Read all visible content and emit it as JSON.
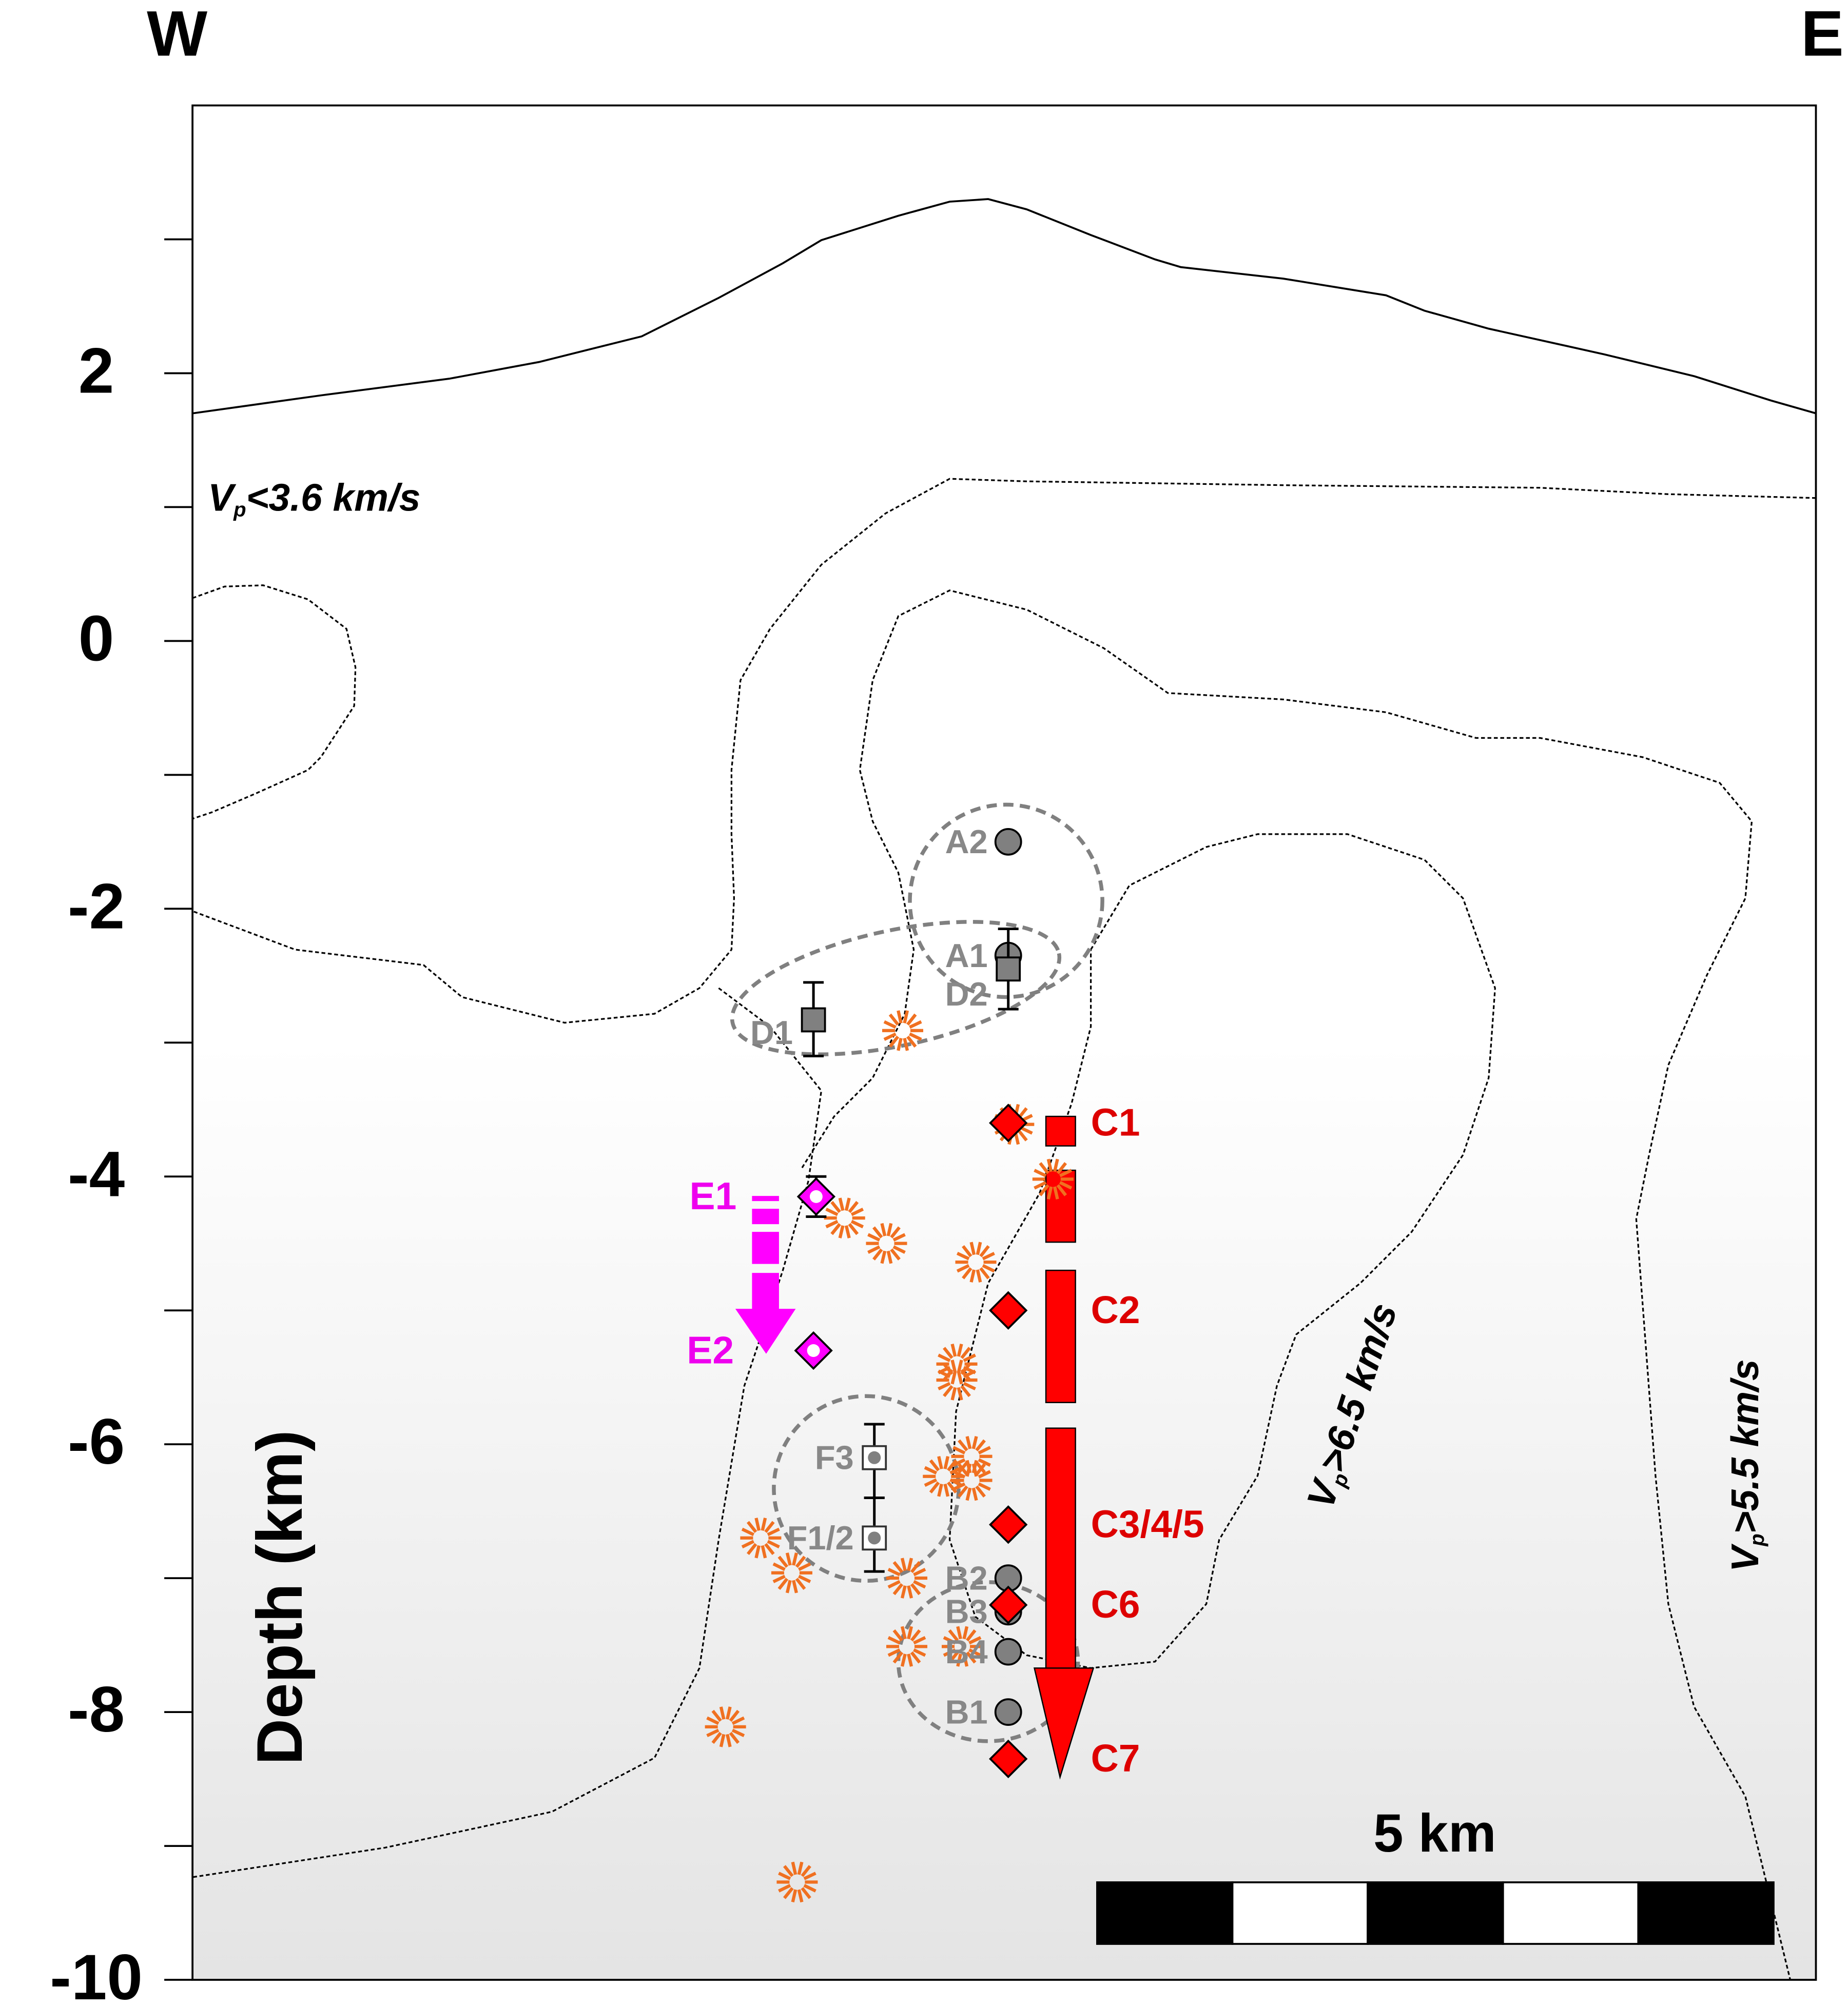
{
  "chart_data": {
    "type": "cross-section",
    "left_label": "W",
    "right_label": "E",
    "y_label": "Depth (km)",
    "xlim": [
      0,
      12
    ],
    "ylim": [
      -10,
      4
    ],
    "yticks": [
      -10,
      -8,
      -6,
      -4,
      -2,
      0,
      2
    ],
    "minor_yticks": [
      -9,
      -7,
      -5,
      -3,
      -1,
      1,
      3
    ],
    "annotations": [
      {
        "symbol": "V",
        "subscript": "p",
        "text": "<3.6 km/s"
      },
      {
        "symbol": "V",
        "subscript": "p",
        "text": ">6.5 km/s"
      },
      {
        "symbol": "V",
        "subscript": "p",
        "text": ">5.5 km/s"
      }
    ],
    "scale_bar": {
      "label": "5 km",
      "length": 5
    },
    "points": [
      {
        "label": "A2",
        "x": 6.03,
        "depth": -1.5,
        "marker": "circle",
        "color": "#808080"
      },
      {
        "label": "A1",
        "x": 6.03,
        "depth": -2.35,
        "marker": "circle",
        "color": "#808080"
      },
      {
        "label": "D2",
        "x": 6.03,
        "depth": -2.45,
        "marker": "square",
        "color": "#808080",
        "depth_range": [
          -2.15,
          -2.75
        ]
      },
      {
        "label": "D1",
        "x": 4.59,
        "depth": -2.83,
        "marker": "square",
        "color": "#808080",
        "depth_range": [
          -2.55,
          -3.1
        ]
      },
      {
        "label": "E1",
        "x": 4.61,
        "depth": -4.15,
        "marker": "diamond",
        "color": "#ff00ff",
        "depth_range": [
          -4.0,
          -4.3
        ]
      },
      {
        "label": "E2",
        "x": 4.59,
        "depth": -5.3,
        "marker": "diamond",
        "color": "#ff00ff"
      },
      {
        "label": "F3",
        "x": 5.04,
        "depth": -6.1,
        "marker": "square",
        "color": "#808080",
        "depth_range": [
          -5.85,
          -6.4
        ]
      },
      {
        "label": "F1/2",
        "x": 5.04,
        "depth": -6.7,
        "marker": "square",
        "color": "#808080",
        "depth_range": [
          -6.4,
          -6.95
        ]
      },
      {
        "label": "B2",
        "x": 6.03,
        "depth": -7.0,
        "marker": "circle",
        "color": "#808080"
      },
      {
        "label": "B3",
        "x": 6.03,
        "depth": -7.25,
        "marker": "circle",
        "color": "#808080"
      },
      {
        "label": "B4",
        "x": 6.03,
        "depth": -7.55,
        "marker": "circle",
        "color": "#808080"
      },
      {
        "label": "B1",
        "x": 6.03,
        "depth": -8.0,
        "marker": "circle",
        "color": "#808080"
      },
      {
        "label": "C1",
        "x": 6.03,
        "depth": -3.6,
        "marker": "diamond",
        "color": "#ff0000"
      },
      {
        "label": "C2",
        "x": 6.03,
        "depth": -5.0,
        "marker": "diamond",
        "color": "#ff0000"
      },
      {
        "label": "C3/4/5",
        "x": 6.03,
        "depth": -6.6,
        "marker": "diamond",
        "color": "#ff0000"
      },
      {
        "label": "C6",
        "x": 6.03,
        "depth": -7.2,
        "marker": "diamond",
        "color": "#ff0000"
      },
      {
        "label": "C7",
        "x": 6.03,
        "depth": -8.35,
        "marker": "diamond",
        "color": "#ff0000"
      }
    ],
    "events": {
      "color": "#f07020",
      "x": [
        5.25,
        6.07,
        6.36,
        4.82,
        5.13,
        5.79,
        5.65,
        5.65,
        5.76,
        5.55,
        5.76,
        4.2,
        4.43,
        5.28,
        5.28,
        5.69,
        3.94,
        4.47
      ],
      "depth": [
        -2.91,
        -3.61,
        -4.02,
        -4.31,
        -4.5,
        -4.64,
        -5.4,
        -5.52,
        -6.09,
        -6.24,
        -6.27,
        -6.7,
        -6.96,
        -7.0,
        -7.51,
        -7.51,
        -8.11,
        -9.27
      ]
    }
  }
}
